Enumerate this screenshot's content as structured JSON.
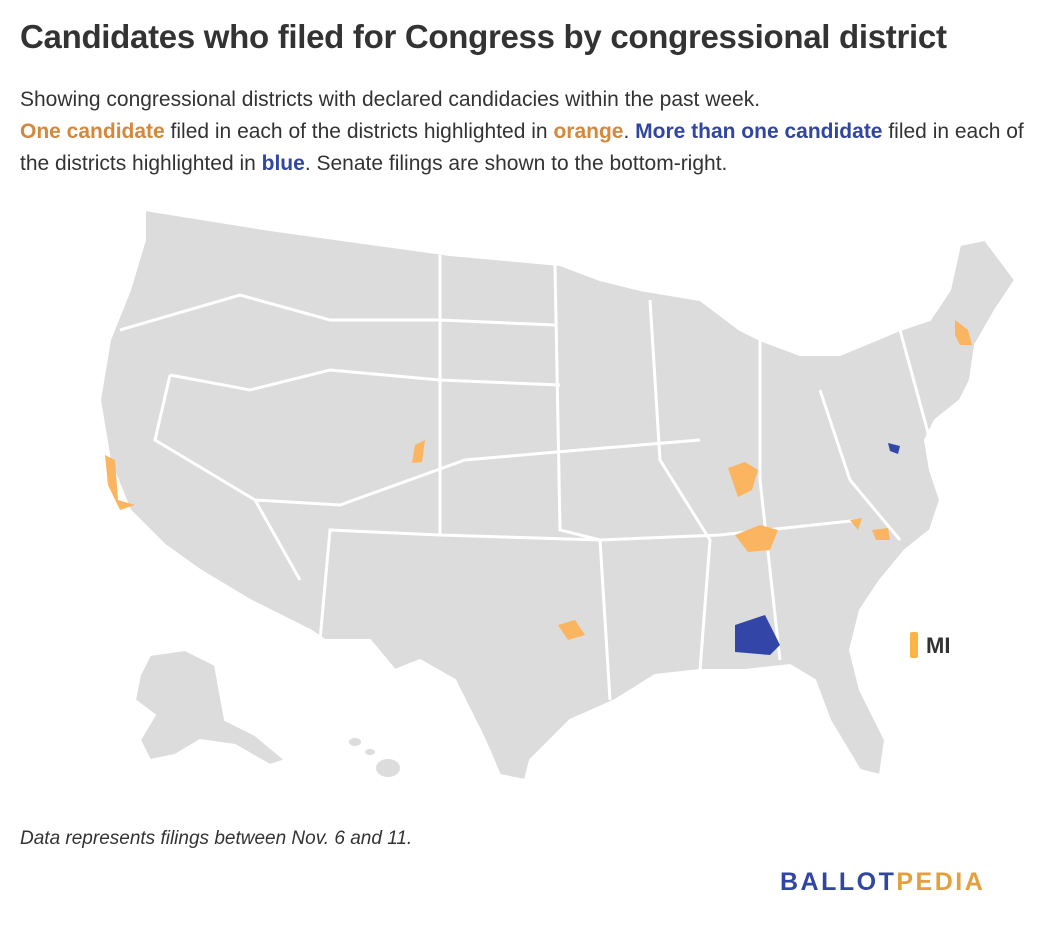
{
  "header": {
    "title": "Candidates who filed for Congress by congressional district",
    "description": {
      "line1": "Showing congressional districts with declared candidacies within the past week.",
      "segments": [
        "One candidate",
        " filed in each of the districts highlighted in ",
        "orange",
        ". ",
        "More than one candidate",
        " filed in each of the districts highlighted in ",
        "blue",
        ". Senate filings are shown to the bottom-right."
      ]
    }
  },
  "map": {
    "senate_label": "MI"
  },
  "footer": {
    "note": "Data represents filings between Nov. 6 and 11.",
    "logo": [
      "BALLOT",
      "PEDIA"
    ]
  }
}
